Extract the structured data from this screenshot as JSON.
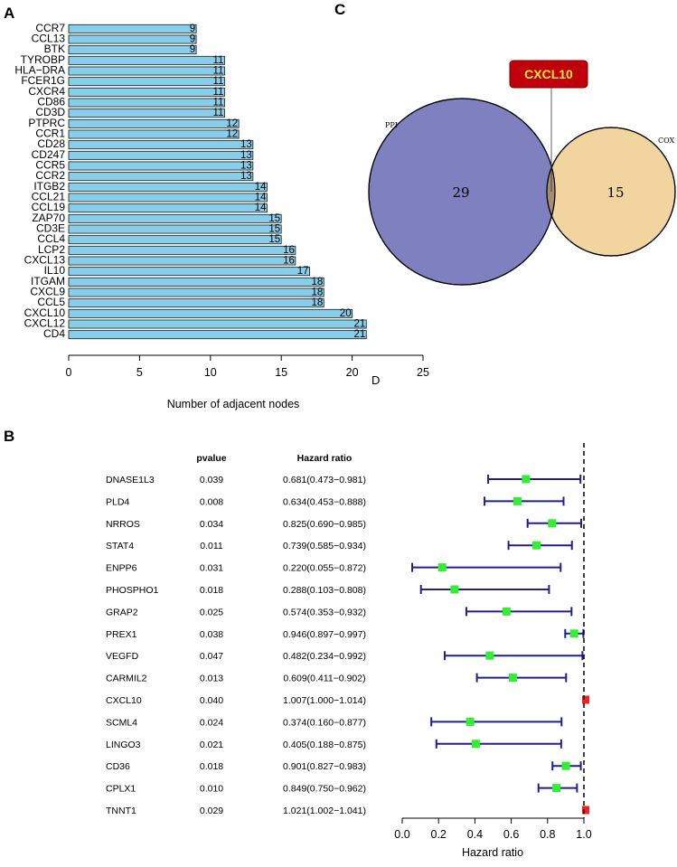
{
  "panel_labels": {
    "a": "A",
    "b": "B",
    "c": "C",
    "d": "D"
  },
  "colors": {
    "bar_fill": "#87CEEB",
    "ppi_fill": "#7F80BF",
    "cox_fill": "#F2D59E",
    "overlap_fill": "#A68B73",
    "callout_fill": "#C0000A",
    "callout_text": "#FFEB3B",
    "ci_line": "#1F1F8F",
    "point_protective": "#33EE33",
    "point_risk": "#EE2222"
  },
  "chart_data": [
    {
      "type": "bar",
      "orientation": "horizontal",
      "panel": "A",
      "title": "",
      "xlabel": "Number of adjacent nodes",
      "ylabel": "",
      "xlim": [
        0,
        25
      ],
      "xticks": [
        "0",
        "5",
        "10",
        "15",
        "20",
        "25"
      ],
      "grid": false,
      "categories": [
        "CCR7",
        "CCL13",
        "BTK",
        "TYROBP",
        "HLA−DRA",
        "FCER1G",
        "CXCR4",
        "CD86",
        "CD3D",
        "PTPRC",
        "CCR1",
        "CD28",
        "CD247",
        "CCR5",
        "CCR2",
        "ITGB2",
        "CCL21",
        "CCL19",
        "ZAP70",
        "CD3E",
        "CCL4",
        "LCP2",
        "CXCL13",
        "IL10",
        "ITGAM",
        "CXCL9",
        "CCL5",
        "CXCL10",
        "CXCL12",
        "CD4"
      ],
      "values": [
        9,
        9,
        9,
        11,
        11,
        11,
        11,
        11,
        11,
        12,
        12,
        13,
        13,
        13,
        13,
        14,
        14,
        14,
        15,
        15,
        15,
        16,
        16,
        17,
        18,
        18,
        18,
        20,
        21,
        21
      ]
    },
    {
      "type": "venn",
      "panel": "C",
      "sets": [
        {
          "name": "PPI",
          "only_count": "29"
        },
        {
          "name": "COX",
          "only_count": "15"
        }
      ],
      "intersection_label": "CXCL10"
    },
    {
      "type": "forest",
      "panel": "B",
      "xlabel": "Hazard ratio",
      "xlim": [
        0.0,
        1.0
      ],
      "xticks": [
        "0.0",
        "0.2",
        "0.4",
        "0.6",
        "0.8",
        "1.0"
      ],
      "reference_line": 1.0,
      "header_pvalue": "pvalue",
      "header_hr": "Hazard ratio",
      "rows": [
        {
          "gene": "DNASE1L3",
          "pvalue": "0.039",
          "hr_text": "0.681(0.473−0.981)",
          "hr": 0.681,
          "lower": 0.473,
          "upper": 0.981
        },
        {
          "gene": "PLD4",
          "pvalue": "0.008",
          "hr_text": "0.634(0.453−0.888)",
          "hr": 0.634,
          "lower": 0.453,
          "upper": 0.888
        },
        {
          "gene": "NRROS",
          "pvalue": "0.034",
          "hr_text": "0.825(0.690−0.985)",
          "hr": 0.825,
          "lower": 0.69,
          "upper": 0.985
        },
        {
          "gene": "STAT4",
          "pvalue": "0.011",
          "hr_text": "0.739(0.585−0.934)",
          "hr": 0.739,
          "lower": 0.585,
          "upper": 0.934
        },
        {
          "gene": "ENPP6",
          "pvalue": "0.031",
          "hr_text": "0.220(0.055−0.872)",
          "hr": 0.22,
          "lower": 0.055,
          "upper": 0.872
        },
        {
          "gene": "PHOSPHO1",
          "pvalue": "0.018",
          "hr_text": "0.288(0.103−0.808)",
          "hr": 0.288,
          "lower": 0.103,
          "upper": 0.808
        },
        {
          "gene": "GRAP2",
          "pvalue": "0.025",
          "hr_text": "0.574(0.353−0.932)",
          "hr": 0.574,
          "lower": 0.353,
          "upper": 0.932
        },
        {
          "gene": "PREX1",
          "pvalue": "0.038",
          "hr_text": "0.946(0.897−0.997)",
          "hr": 0.946,
          "lower": 0.897,
          "upper": 0.997
        },
        {
          "gene": "VEGFD",
          "pvalue": "0.047",
          "hr_text": "0.482(0.234−0.992)",
          "hr": 0.482,
          "lower": 0.234,
          "upper": 0.992
        },
        {
          "gene": "CARMIL2",
          "pvalue": "0.013",
          "hr_text": "0.609(0.411−0.902)",
          "hr": 0.609,
          "lower": 0.411,
          "upper": 0.902
        },
        {
          "gene": "CXCL10",
          "pvalue": "0.040",
          "hr_text": "1.007(1.000−1.014)",
          "hr": 1.007,
          "lower": 1.0,
          "upper": 1.014
        },
        {
          "gene": "SCML4",
          "pvalue": "0.024",
          "hr_text": "0.374(0.160−0.877)",
          "hr": 0.374,
          "lower": 0.16,
          "upper": 0.877
        },
        {
          "gene": "LINGO3",
          "pvalue": "0.021",
          "hr_text": "0.405(0.188−0.875)",
          "hr": 0.405,
          "lower": 0.188,
          "upper": 0.875
        },
        {
          "gene": "CD36",
          "pvalue": "0.018",
          "hr_text": "0.901(0.827−0.983)",
          "hr": 0.901,
          "lower": 0.827,
          "upper": 0.983
        },
        {
          "gene": "CPLX1",
          "pvalue": "0.010",
          "hr_text": "0.849(0.750−0.962)",
          "hr": 0.849,
          "lower": 0.75,
          "upper": 0.962
        },
        {
          "gene": "TNNT1",
          "pvalue": "0.029",
          "hr_text": "1.021(1.002−1.041)",
          "hr": 1.021,
          "lower": 1.002,
          "upper": 1.041
        }
      ]
    }
  ]
}
